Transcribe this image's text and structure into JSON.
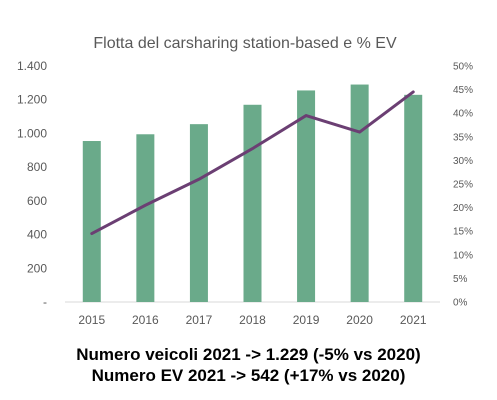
{
  "chart_data": {
    "type": "bar",
    "title": "Flotta del carsharing station-based e % EV",
    "categories": [
      "2015",
      "2016",
      "2017",
      "2018",
      "2019",
      "2020",
      "2021"
    ],
    "series": [
      {
        "type": "bar",
        "axis": "left",
        "color": "#6aaa8a",
        "values": [
          955,
          995,
          1055,
          1170,
          1255,
          1290,
          1229
        ]
      },
      {
        "type": "line",
        "axis": "right",
        "color": "#6b3f73",
        "values": [
          14.5,
          20.5,
          26,
          32.5,
          39.5,
          36,
          44.5
        ]
      }
    ],
    "y_left": {
      "ylim": [
        0,
        1400
      ],
      "ticks": [
        0,
        200,
        400,
        600,
        800,
        1000,
        1200,
        1400
      ],
      "tick_labels": [
        "-",
        "200",
        "400",
        "600",
        "800",
        "1.000",
        "1.200",
        "1.400"
      ]
    },
    "y_right": {
      "ylim": [
        0,
        50
      ],
      "ticks": [
        0,
        5,
        10,
        15,
        20,
        25,
        30,
        35,
        40,
        45,
        50
      ],
      "tick_labels": [
        "0%",
        "5%",
        "10%",
        "15%",
        "20%",
        "25%",
        "30%",
        "35%",
        "40%",
        "45%",
        "50%"
      ]
    },
    "grid": false,
    "legend": "none"
  },
  "notes": {
    "line1": "Numero veicoli 2021 -> 1.229 (-5% vs 2020)",
    "line2": "Numero EV 2021 -> 542 (+17% vs 2020)"
  }
}
